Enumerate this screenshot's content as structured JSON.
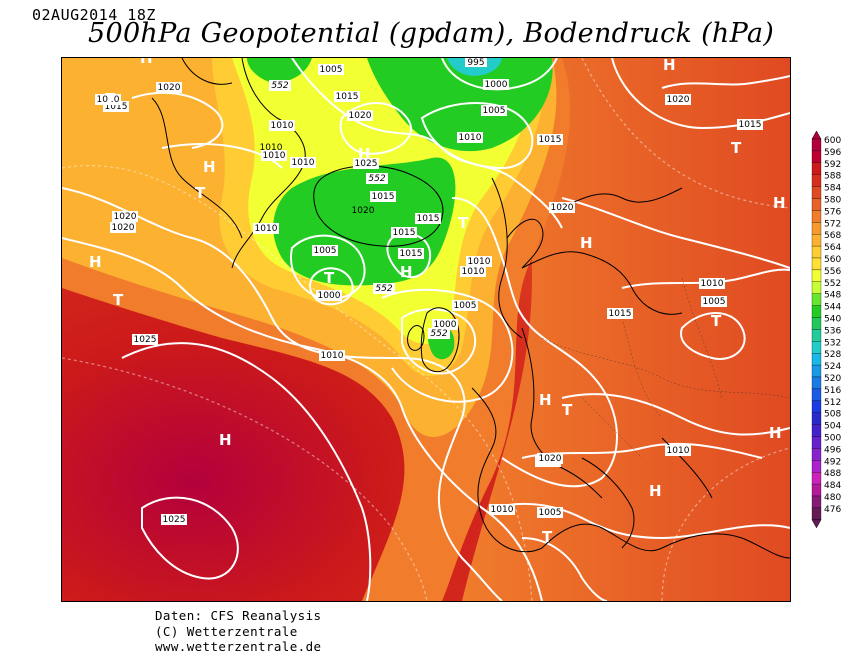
{
  "header": {
    "date": "02AUG2014 18Z",
    "title": "500hPa Geopotential (gpdam), Bodendruck (hPa)"
  },
  "credits": {
    "line1": "Daten: CFS Reanalysis",
    "line2": "(C) Wetterzentrale",
    "line3": "www.wetterzentrale.de"
  },
  "legend": {
    "levels": [
      "600",
      "596",
      "592",
      "588",
      "584",
      "580",
      "576",
      "572",
      "568",
      "564",
      "560",
      "556",
      "552",
      "548",
      "544",
      "540",
      "536",
      "532",
      "528",
      "524",
      "520",
      "516",
      "512",
      "508",
      "504",
      "500",
      "496",
      "492",
      "488",
      "484",
      "480",
      "476"
    ],
    "colors": [
      "#b3003c",
      "#c00030",
      "#cc1a1a",
      "#d72e1e",
      "#e04a22",
      "#e8602a",
      "#f07c2c",
      "#f79a2e",
      "#fcb130",
      "#ffcc33",
      "#ffe033",
      "#f2ff33",
      "#c8ff33",
      "#66e62e",
      "#22cc22",
      "#22c85a",
      "#22cc99",
      "#22ccc8",
      "#1ab8e6",
      "#1a9ae6",
      "#1a7ae6",
      "#1a5ae6",
      "#1a3ae6",
      "#2a2acc",
      "#4422cc",
      "#6622cc",
      "#8822cc",
      "#aa22cc",
      "#cc22bb",
      "#b31a99",
      "#881a77",
      "#661a55"
    ]
  },
  "map": {
    "pressure_labels": [
      "1005",
      "995",
      "1000",
      "1005",
      "1015",
      "1020",
      "1010",
      "1010",
      "1015",
      "1020",
      "1025",
      "1010",
      "1015",
      "1020",
      "1015",
      "1010",
      "1005",
      "1000",
      "1015",
      "1015",
      "1010",
      "1010",
      "1020",
      "1010",
      "1005",
      "1000",
      "1010",
      "1005",
      "1015",
      "1010",
      "1020",
      "1015",
      "1025",
      "1025",
      "1010",
      "1010",
      "1010",
      "1005",
      "1010",
      "1020",
      "1015",
      "1020",
      "1015",
      "1020",
      "1010"
    ],
    "height_labels": [
      "552",
      "552",
      "552",
      "552",
      "552"
    ],
    "symbols": {
      "high": "H",
      "low": "T"
    }
  }
}
